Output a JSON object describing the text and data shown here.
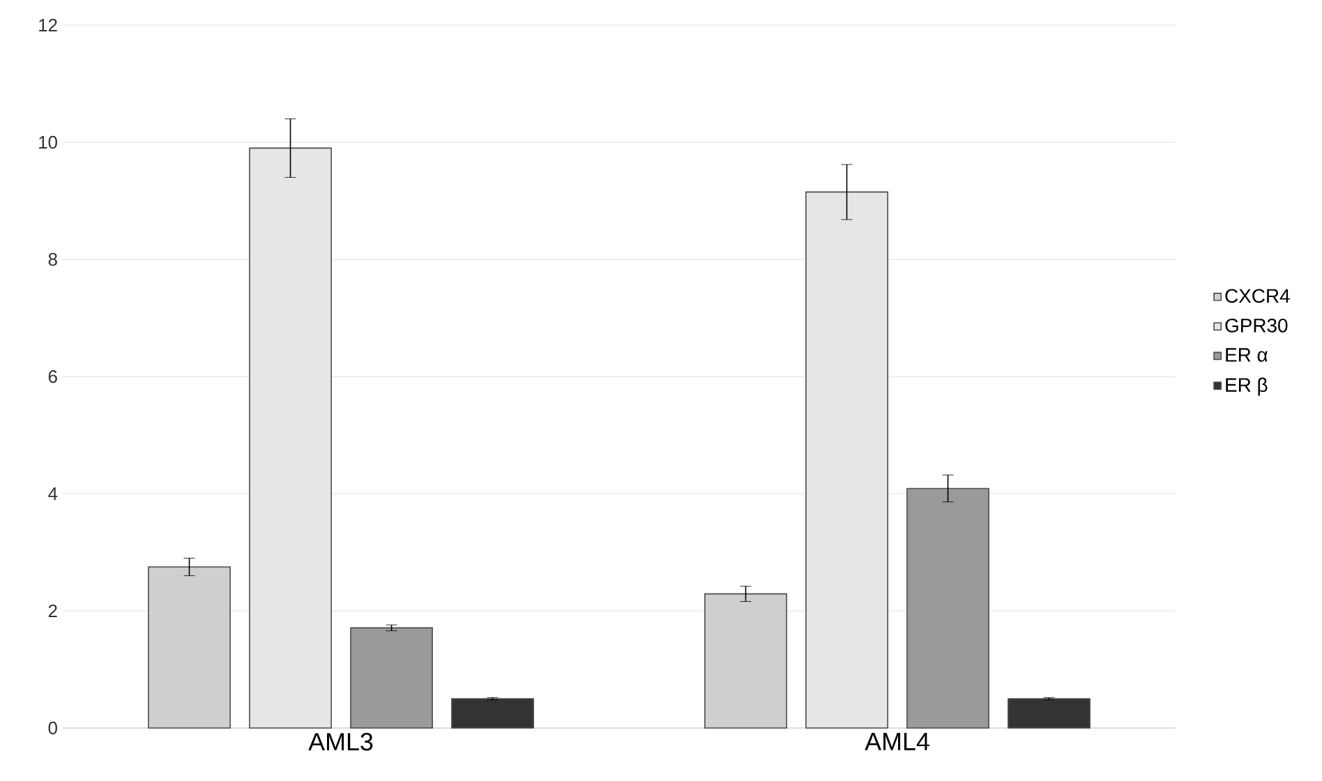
{
  "chart_data": {
    "type": "bar",
    "categories": [
      "AML3",
      "AML4"
    ],
    "series": [
      {
        "name": "CXCR4",
        "color": "#cfcfcf",
        "values": [
          2.75,
          2.29
        ],
        "errors": [
          0.15,
          0.13
        ]
      },
      {
        "name": "GPR30",
        "color": "#e6e6e6",
        "values": [
          9.9,
          9.15
        ],
        "errors": [
          0.5,
          0.47
        ]
      },
      {
        "name": "ER α",
        "color": "#9a9a9a",
        "values": [
          1.71,
          4.09
        ],
        "errors": [
          0.05,
          0.23
        ]
      },
      {
        "name": "ER β",
        "color": "#333333",
        "values": [
          0.5,
          0.5
        ],
        "errors": [
          0.02,
          0.02
        ]
      }
    ],
    "ylim": [
      0,
      12
    ],
    "yticks": [
      0,
      2,
      4,
      6,
      8,
      10,
      12
    ],
    "grid": "y",
    "legend": "right"
  }
}
